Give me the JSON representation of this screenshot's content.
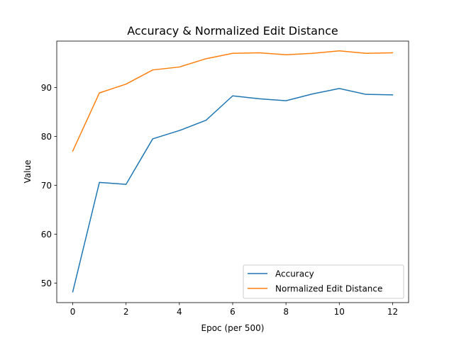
{
  "chart_data": {
    "type": "line",
    "title": "Accuracy & Normalized Edit Distance",
    "xlabel": "Epoc (per 500)",
    "ylabel": "Value",
    "x": [
      0,
      1,
      2,
      3,
      4,
      5,
      6,
      7,
      8,
      9,
      10,
      11,
      12
    ],
    "xlim": [
      -0.6,
      12.6
    ],
    "ylim": [
      46.0,
      99.5
    ],
    "x_ticks": [
      0,
      2,
      4,
      6,
      8,
      10,
      12
    ],
    "y_ticks": [
      50,
      60,
      70,
      80,
      90
    ],
    "grid": false,
    "legend_position": "lower right",
    "series": [
      {
        "name": "Accuracy",
        "color": "#1f77b4",
        "values": [
          48.2,
          70.6,
          70.2,
          79.5,
          81.2,
          83.3,
          88.3,
          87.7,
          87.3,
          88.7,
          89.8,
          88.6,
          88.5
        ]
      },
      {
        "name": "Normalized Edit Distance",
        "color": "#ff7f0e",
        "values": [
          77.0,
          88.9,
          90.7,
          93.6,
          94.2,
          95.9,
          97.0,
          97.1,
          96.7,
          97.0,
          97.5,
          97.0,
          97.1
        ]
      }
    ]
  }
}
